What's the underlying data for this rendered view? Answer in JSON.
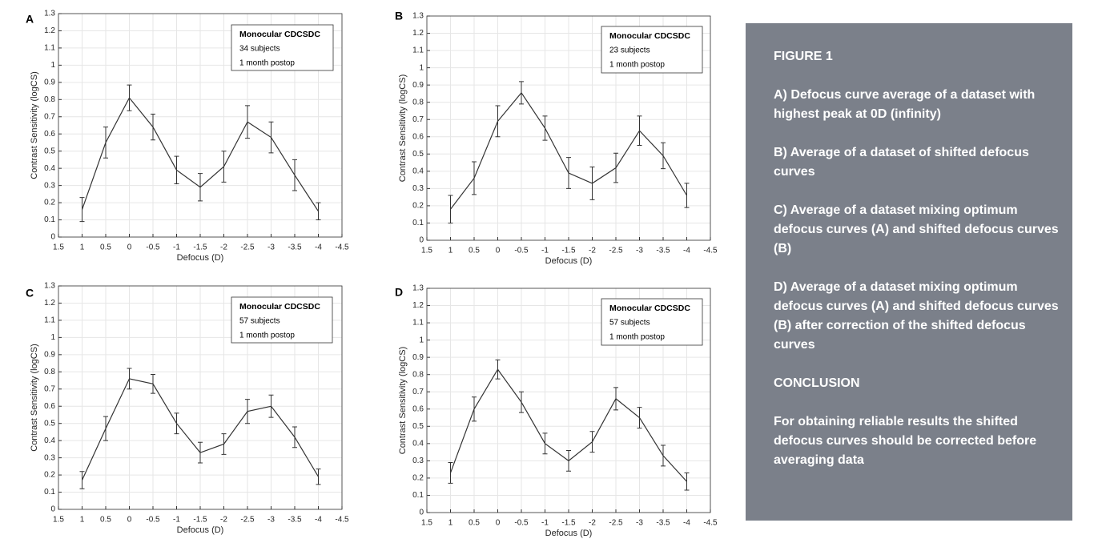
{
  "chart_data": [
    {
      "type": "line",
      "panel_label": "A",
      "xlabel": "Defocus (D)",
      "ylabel": "Contrast Sensitivity (logCS)",
      "annotation": [
        "Monocular CDCSDC",
        "34 subjects",
        "1 month postop"
      ],
      "x": [
        1,
        0.5,
        0,
        -0.5,
        -1,
        -1.5,
        -2,
        -2.5,
        -3,
        -3.5,
        -4
      ],
      "values": [
        0.16,
        0.55,
        0.81,
        0.64,
        0.39,
        0.29,
        0.41,
        0.67,
        0.58,
        0.36,
        0.15
      ],
      "errors": [
        0.07,
        0.09,
        0.075,
        0.075,
        0.08,
        0.08,
        0.09,
        0.095,
        0.09,
        0.09,
        0.05
      ],
      "color": "#333333",
      "grid": true,
      "xlim": [
        1.5,
        -4.5
      ],
      "xticks": [
        1.5,
        1,
        0.5,
        0,
        -0.5,
        -1,
        -1.5,
        -2,
        -2.5,
        -3,
        -3.5,
        -4,
        -4.5
      ],
      "ylim": [
        0,
        1.3
      ],
      "yticks": [
        0,
        0.1,
        0.2,
        0.3,
        0.4,
        0.5,
        0.6,
        0.7,
        0.8,
        0.9,
        1,
        1.1,
        1.2,
        1.3
      ]
    },
    {
      "type": "line",
      "panel_label": "B",
      "xlabel": "Defocus (D)",
      "ylabel": "Contrast Sensitivity (logCS)",
      "annotation": [
        "Monocular CDCSDC",
        "23 subjects",
        "1 month postop"
      ],
      "x": [
        1,
        0.5,
        0,
        -0.5,
        -1,
        -1.5,
        -2,
        -2.5,
        -3,
        -3.5,
        -4
      ],
      "values": [
        0.18,
        0.36,
        0.69,
        0.855,
        0.65,
        0.39,
        0.33,
        0.42,
        0.635,
        0.49,
        0.26
      ],
      "errors": [
        0.08,
        0.095,
        0.09,
        0.065,
        0.07,
        0.09,
        0.095,
        0.085,
        0.085,
        0.075,
        0.07
      ],
      "color": "#333333",
      "grid": true,
      "xlim": [
        1.5,
        -4.5
      ],
      "xticks": [
        1.5,
        1,
        0.5,
        0,
        -0.5,
        -1,
        -1.5,
        -2,
        -2.5,
        -3,
        -3.5,
        -4,
        -4.5
      ],
      "ylim": [
        0,
        1.3
      ],
      "yticks": [
        0,
        0.1,
        0.2,
        0.3,
        0.4,
        0.5,
        0.6,
        0.7,
        0.8,
        0.9,
        1,
        1.1,
        1.2,
        1.3
      ]
    },
    {
      "type": "line",
      "panel_label": "C",
      "xlabel": "Defocus (D)",
      "ylabel": "Contrast Sensitivity (logCS)",
      "annotation": [
        "Monocular CDCSDC",
        "57 subjects",
        "1 month postop"
      ],
      "x": [
        1,
        0.5,
        0,
        -0.5,
        -1,
        -1.5,
        -2,
        -2.5,
        -3,
        -3.5,
        -4
      ],
      "values": [
        0.17,
        0.47,
        0.76,
        0.73,
        0.5,
        0.33,
        0.38,
        0.57,
        0.6,
        0.42,
        0.19
      ],
      "errors": [
        0.05,
        0.07,
        0.06,
        0.055,
        0.06,
        0.06,
        0.06,
        0.07,
        0.065,
        0.06,
        0.045
      ],
      "color": "#333333",
      "grid": true,
      "xlim": [
        1.5,
        -4.5
      ],
      "xticks": [
        1.5,
        1,
        0.5,
        0,
        -0.5,
        -1,
        -1.5,
        -2,
        -2.5,
        -3,
        -3.5,
        -4,
        -4.5
      ],
      "ylim": [
        0,
        1.3
      ],
      "yticks": [
        0,
        0.1,
        0.2,
        0.3,
        0.4,
        0.5,
        0.6,
        0.7,
        0.8,
        0.9,
        1,
        1.1,
        1.2,
        1.3
      ]
    },
    {
      "type": "line",
      "panel_label": "D",
      "xlabel": "Defocus (D)",
      "ylabel": "Contrast Sensitivity (logCS)",
      "annotation": [
        "Monocular CDCSDC",
        "57 subjects",
        "1 month postop"
      ],
      "x": [
        1,
        0.5,
        0,
        -0.5,
        -1,
        -1.5,
        -2,
        -2.5,
        -3,
        -3.5,
        -4
      ],
      "values": [
        0.23,
        0.6,
        0.83,
        0.64,
        0.4,
        0.3,
        0.41,
        0.66,
        0.55,
        0.33,
        0.18
      ],
      "errors": [
        0.06,
        0.07,
        0.055,
        0.06,
        0.06,
        0.06,
        0.06,
        0.065,
        0.06,
        0.06,
        0.05
      ],
      "color": "#333333",
      "grid": true,
      "xlim": [
        1.5,
        -4.5
      ],
      "xticks": [
        1.5,
        1,
        0.5,
        0,
        -0.5,
        -1,
        -1.5,
        -2,
        -2.5,
        -3,
        -3.5,
        -4,
        -4.5
      ],
      "ylim": [
        0,
        1.3
      ],
      "yticks": [
        0,
        0.1,
        0.2,
        0.3,
        0.4,
        0.5,
        0.6,
        0.7,
        0.8,
        0.9,
        1,
        1.1,
        1.2,
        1.3
      ]
    }
  ],
  "panel": {
    "title": "FIGURE 1",
    "paragraphs": [
      "A) Defocus curve average of a dataset with highest peak at 0D (infinity)",
      "B) Average of a dataset of shifted defocus curves",
      "C) Average of a dataset mixing optimum defocus curves (A) and shifted defocus curves (B)",
      "D) Average of a dataset mixing optimum defocus curves (A) and shifted defocus curves (B) after correction of the shifted defocus curves",
      "CONCLUSION",
      "For obtaining reliable results the shifted defocus curves should be corrected before averaging data"
    ]
  }
}
